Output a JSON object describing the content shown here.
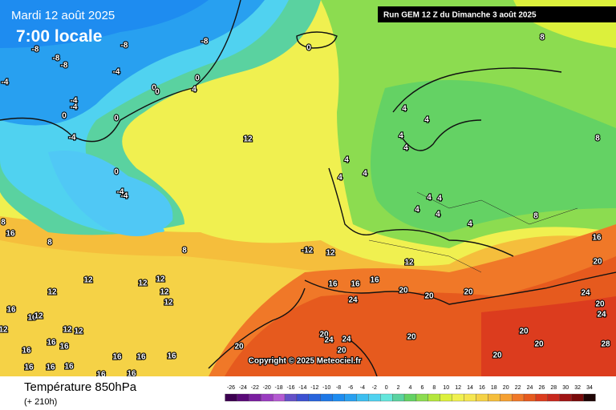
{
  "header": {
    "date": "Mardi 12 août 2025",
    "time": "7:00 locale",
    "run": "Run GEM 12 Z du Dimanche 3 août 2025"
  },
  "map": {
    "copyright": "Copyright © 2025 Meteociel.fr",
    "labels": [
      -8,
      -8,
      -8,
      -8,
      -8,
      -4,
      -4,
      -4,
      -4,
      -4,
      -4,
      -4,
      0,
      0,
      0,
      0,
      4,
      0,
      0,
      0,
      4,
      4,
      4,
      4,
      4,
      4,
      4,
      4,
      4,
      4,
      4,
      4,
      8,
      8,
      8,
      8,
      12,
      -12,
      12,
      12,
      16,
      20,
      16,
      16,
      16,
      20,
      20,
      24,
      20,
      24,
      20,
      24,
      20,
      24,
      24,
      20,
      20,
      20,
      20,
      28,
      20,
      20,
      12,
      12,
      12,
      12,
      12,
      16,
      16,
      16,
      12,
      12,
      12,
      12,
      12,
      16,
      16,
      16,
      16,
      16,
      16,
      16,
      16,
      16,
      16,
      16,
      8,
      8
    ]
  },
  "footer": {
    "variable": "Température 850hPa",
    "lead": "(+ 210h)"
  },
  "scale": {
    "ticks": [
      -26,
      -24,
      -22,
      -20,
      -18,
      -16,
      -14,
      -12,
      -10,
      -8,
      -6,
      -4,
      -2,
      0,
      2,
      4,
      6,
      8,
      10,
      12,
      14,
      16,
      18,
      20,
      22,
      24,
      26,
      28,
      30,
      32,
      34
    ],
    "colors": [
      "#3c0050",
      "#5a0a78",
      "#7a1ea0",
      "#9a3cc0",
      "#b45ad2",
      "#6450c8",
      "#3c50d2",
      "#2864dc",
      "#1e78e6",
      "#1e8cf0",
      "#28a0f0",
      "#3cbef0",
      "#50d2f0",
      "#64e6dc",
      "#5ad2a0",
      "#64d264",
      "#8cdc50",
      "#b4e63c",
      "#dcf03c",
      "#f0f050",
      "#f5e650",
      "#f5d246",
      "#f5be3c",
      "#f5a032",
      "#f07828",
      "#e65a1e",
      "#dc3c1e",
      "#c8281e",
      "#a01414",
      "#780a0a",
      "#1e0505"
    ]
  }
}
